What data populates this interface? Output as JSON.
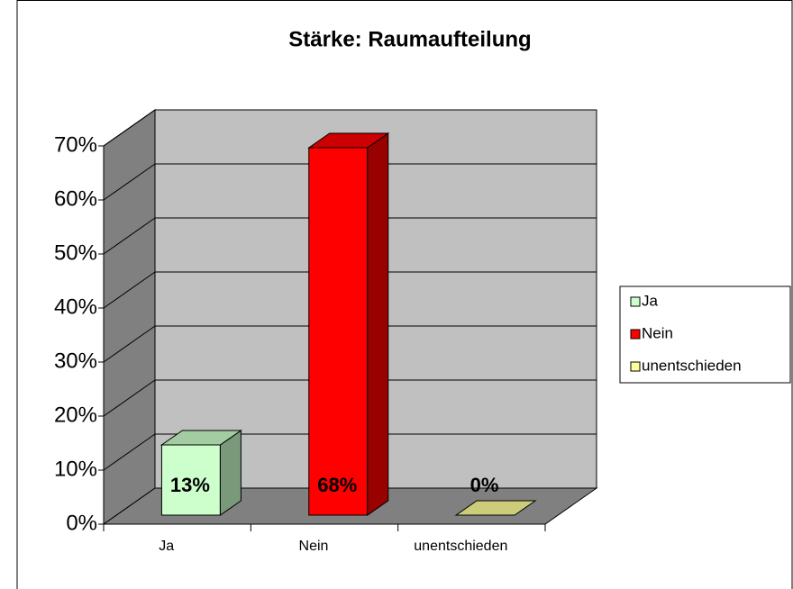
{
  "chart_data": {
    "type": "bar3d",
    "title": "Stärke: Raumaufteilung",
    "categories": [
      "Ja",
      "Nein",
      "unentschieden"
    ],
    "values": [
      13,
      68,
      0
    ],
    "value_labels": [
      "13%",
      "68%",
      "0%"
    ],
    "colors": [
      "#ccffcc",
      "#ff0000",
      "#ffff99"
    ],
    "ylim": [
      0,
      70
    ],
    "yticks": [
      {
        "value": 0,
        "label": "0%"
      },
      {
        "value": 10,
        "label": "10%"
      },
      {
        "value": 20,
        "label": "20%"
      },
      {
        "value": 30,
        "label": "30%"
      },
      {
        "value": 40,
        "label": "40%"
      },
      {
        "value": 50,
        "label": "50%"
      },
      {
        "value": 60,
        "label": "60%"
      },
      {
        "value": 70,
        "label": "70%"
      }
    ],
    "grid": true,
    "legend": "right"
  }
}
